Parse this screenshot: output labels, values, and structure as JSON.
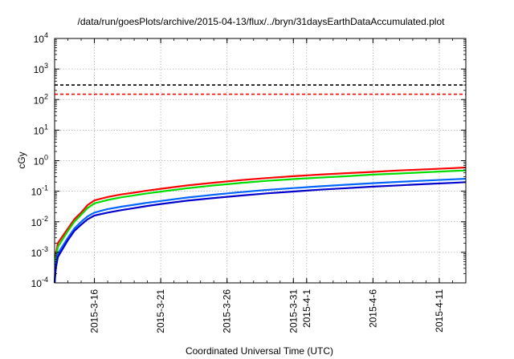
{
  "chart_data": {
    "type": "line",
    "title": "/data/run/goesPlots/archive/2015-04-13/flux/../bryn/31daysEarthDataAccumulated.plot",
    "xlabel": "Coordinated Universal Time (UTC)",
    "ylabel": "cGy",
    "y_scale": "log",
    "ylim": [
      0.0001,
      10000
    ],
    "xlim": [
      "2015-03-13",
      "2015-04-13"
    ],
    "grid": true,
    "y_ticks": [
      {
        "base": "10",
        "exp": "-4"
      },
      {
        "base": "10",
        "exp": "-3"
      },
      {
        "base": "10",
        "exp": "-2"
      },
      {
        "base": "10",
        "exp": "-1"
      },
      {
        "base": "10",
        "exp": "0"
      },
      {
        "base": "10",
        "exp": "1"
      },
      {
        "base": "10",
        "exp": "2"
      },
      {
        "base": "10",
        "exp": "3"
      },
      {
        "base": "10",
        "exp": "4"
      }
    ],
    "x_ticks": [
      {
        "date": "2015-03-16",
        "label": "2015-3-16"
      },
      {
        "date": "2015-03-21",
        "label": "2015-3-21"
      },
      {
        "date": "2015-03-26",
        "label": "2015-3-26"
      },
      {
        "date": "2015-03-31",
        "label": "2015-3-31"
      },
      {
        "date": "2015-04-01",
        "label": "2015-4-1"
      },
      {
        "date": "2015-04-06",
        "label": "2015-4-6"
      },
      {
        "date": "2015-04-11",
        "label": "2015-4-11"
      }
    ],
    "reference_lines": [
      {
        "color": "#000000",
        "value": 300
      },
      {
        "color": "#ff0000",
        "value": 150
      }
    ],
    "series": [
      {
        "color": "#ff0000",
        "x": [
          "2015-03-13",
          "2015-03-13",
          "2015-03-13",
          "2015-03-14",
          "2015-03-14",
          "2015-03-15",
          "2015-03-15",
          "2015-03-16",
          "2015-03-17",
          "2015-03-18",
          "2015-03-19",
          "2015-03-20",
          "2015-03-21",
          "2015-03-23",
          "2015-03-25",
          "2015-03-27",
          "2015-03-29",
          "2015-03-31",
          "2015-04-02",
          "2015-04-04",
          "2015-04-06",
          "2015-04-08",
          "2015-04-10",
          "2015-04-12",
          "2015-04-13"
        ],
        "y": [
          0.0001,
          0.0008,
          0.002,
          0.006,
          0.012,
          0.02,
          0.035,
          0.05,
          0.065,
          0.078,
          0.09,
          0.105,
          0.12,
          0.155,
          0.19,
          0.23,
          0.27,
          0.31,
          0.35,
          0.39,
          0.43,
          0.48,
          0.52,
          0.57,
          0.6
        ]
      },
      {
        "color": "#00dd00",
        "x": [
          "2015-03-13",
          "2015-03-13",
          "2015-03-13",
          "2015-03-14",
          "2015-03-14",
          "2015-03-15",
          "2015-03-15",
          "2015-03-16",
          "2015-03-17",
          "2015-03-18",
          "2015-03-19",
          "2015-03-20",
          "2015-03-21",
          "2015-03-23",
          "2015-03-25",
          "2015-03-27",
          "2015-03-29",
          "2015-03-31",
          "2015-04-02",
          "2015-04-04",
          "2015-04-06",
          "2015-04-08",
          "2015-04-10",
          "2015-04-12",
          "2015-04-13"
        ],
        "y": [
          0.0001,
          0.0006,
          0.0015,
          0.005,
          0.01,
          0.017,
          0.028,
          0.04,
          0.052,
          0.063,
          0.073,
          0.085,
          0.097,
          0.125,
          0.155,
          0.185,
          0.22,
          0.25,
          0.28,
          0.31,
          0.35,
          0.38,
          0.42,
          0.46,
          0.48
        ]
      },
      {
        "color": "#0066ff",
        "x": [
          "2015-03-13",
          "2015-03-13",
          "2015-03-13",
          "2015-03-14",
          "2015-03-14",
          "2015-03-15",
          "2015-03-15",
          "2015-03-16",
          "2015-03-17",
          "2015-03-18",
          "2015-03-19",
          "2015-03-20",
          "2015-03-21",
          "2015-03-23",
          "2015-03-25",
          "2015-03-27",
          "2015-03-29",
          "2015-03-31",
          "2015-04-02",
          "2015-04-04",
          "2015-04-06",
          "2015-04-08",
          "2015-04-10",
          "2015-04-12",
          "2015-04-13"
        ],
        "y": [
          0.0001,
          0.0004,
          0.0009,
          0.003,
          0.006,
          0.01,
          0.015,
          0.02,
          0.026,
          0.031,
          0.036,
          0.042,
          0.048,
          0.062,
          0.077,
          0.093,
          0.11,
          0.127,
          0.145,
          0.163,
          0.183,
          0.203,
          0.223,
          0.245,
          0.255
        ]
      },
      {
        "color": "#0000cc",
        "x": [
          "2015-03-13",
          "2015-03-13",
          "2015-03-13",
          "2015-03-14",
          "2015-03-14",
          "2015-03-15",
          "2015-03-15",
          "2015-03-16",
          "2015-03-17",
          "2015-03-18",
          "2015-03-19",
          "2015-03-20",
          "2015-03-21",
          "2015-03-23",
          "2015-03-25",
          "2015-03-27",
          "2015-03-29",
          "2015-03-31",
          "2015-04-02",
          "2015-04-04",
          "2015-04-06",
          "2015-04-08",
          "2015-04-10",
          "2015-04-12",
          "2015-04-13"
        ],
        "y": [
          0.0001,
          0.0003,
          0.0007,
          0.0025,
          0.005,
          0.008,
          0.012,
          0.016,
          0.02,
          0.024,
          0.028,
          0.033,
          0.038,
          0.049,
          0.06,
          0.072,
          0.085,
          0.098,
          0.112,
          0.126,
          0.141,
          0.156,
          0.172,
          0.188,
          0.198
        ]
      }
    ]
  }
}
